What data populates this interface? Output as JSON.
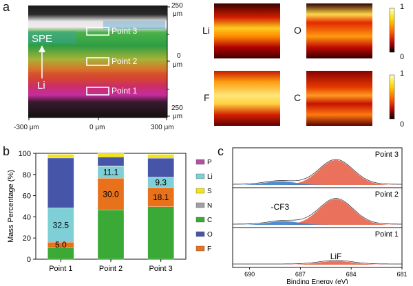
{
  "panels": {
    "a": {
      "label": "a",
      "map_annotations": {
        "spe": "SPE",
        "li": "Li",
        "points": [
          "Point 3",
          "Point 2",
          "Point 1"
        ]
      },
      "y_axis": {
        "top_tick": "250",
        "top_unit": "μm",
        "mid_tick": "0",
        "mid_unit": "μm",
        "bottom_tick": "250",
        "bottom_unit": "μm"
      },
      "x_axis": {
        "ticks": [
          "-300 μm",
          "0 μm",
          "300 μm"
        ]
      },
      "element_maps": [
        {
          "element": "Li",
          "scale_max": "1",
          "scale_min": "0"
        },
        {
          "element": "O",
          "scale_max": "1",
          "scale_min": "0"
        },
        {
          "element": "F",
          "scale_max": "1",
          "scale_min": "0"
        },
        {
          "element": "C",
          "scale_max": "1",
          "scale_min": "0"
        }
      ]
    },
    "b": {
      "label": "b",
      "chart_data": {
        "type": "bar",
        "stacked": true,
        "ylabel": "Mass Percentage (%)",
        "ylim": [
          0,
          100
        ],
        "yticks": [
          "0",
          "20",
          "40",
          "60",
          "80",
          "100"
        ],
        "categories": [
          "Point 1",
          "Point 2",
          "Point 3"
        ],
        "series": [
          {
            "name": "C",
            "color": "#3aa935",
            "values": [
              11,
              46.5,
              49.5
            ]
          },
          {
            "name": "F",
            "color": "#e8711c",
            "values": [
              5.0,
              30.0,
              18.1
            ]
          },
          {
            "name": "Li",
            "color": "#7ecfd6",
            "values": [
              32.5,
              11.1,
              9.3
            ]
          },
          {
            "name": "N",
            "color": "#a0a0a0",
            "values": [
              0,
              0.6,
              0.6
            ]
          },
          {
            "name": "O",
            "color": "#4755a8",
            "values": [
              47,
              8.3,
              17.9
            ]
          },
          {
            "name": "S",
            "color": "#f2e418",
            "values": [
              3.5,
              3.5,
              3.6
            ]
          },
          {
            "name": "P",
            "color": "#b14fa3",
            "values": [
              0,
              0,
              0
            ]
          }
        ],
        "data_labels": [
          {
            "series": "Li",
            "category": "Point 1",
            "text": "32.5"
          },
          {
            "series": "F",
            "category": "Point 1",
            "text": "5.0"
          },
          {
            "series": "Li",
            "category": "Point 2",
            "text": "11.1"
          },
          {
            "series": "F",
            "category": "Point 2",
            "text": "30.0"
          },
          {
            "series": "Li",
            "category": "Point 3",
            "text": "9.3"
          },
          {
            "series": "F",
            "category": "Point 3",
            "text": "18.1"
          }
        ],
        "legend_order": [
          "P",
          "Li",
          "S",
          "N",
          "C",
          "O",
          "F"
        ],
        "legend_position": "right"
      }
    },
    "c": {
      "label": "c",
      "chart_data": {
        "type": "line",
        "xlabel": "Binding Energy (eV)",
        "xlim": [
          691,
          681
        ],
        "xticks": [
          "690",
          "687",
          "684",
          "681"
        ],
        "subplots": [
          {
            "title": "Point 3",
            "peaks": [
              {
                "center": 684.9,
                "height": 0.82,
                "width": 1.0,
                "color": "#e8634a"
              },
              {
                "center": 688.2,
                "height": 0.12,
                "width": 0.9,
                "color": "#3f7fc8"
              }
            ]
          },
          {
            "title": "Point 2",
            "annotation": "-CF3",
            "peaks": [
              {
                "center": 684.9,
                "height": 0.85,
                "width": 1.0,
                "color": "#e8634a"
              },
              {
                "center": 688.0,
                "height": 0.12,
                "width": 0.9,
                "color": "#3f7fc8"
              }
            ]
          },
          {
            "title": "Point 1",
            "annotation": "LiF",
            "peaks": [
              {
                "center": 684.9,
                "height": 0.12,
                "width": 1.0,
                "color": "#e8634a"
              }
            ]
          }
        ]
      }
    }
  }
}
